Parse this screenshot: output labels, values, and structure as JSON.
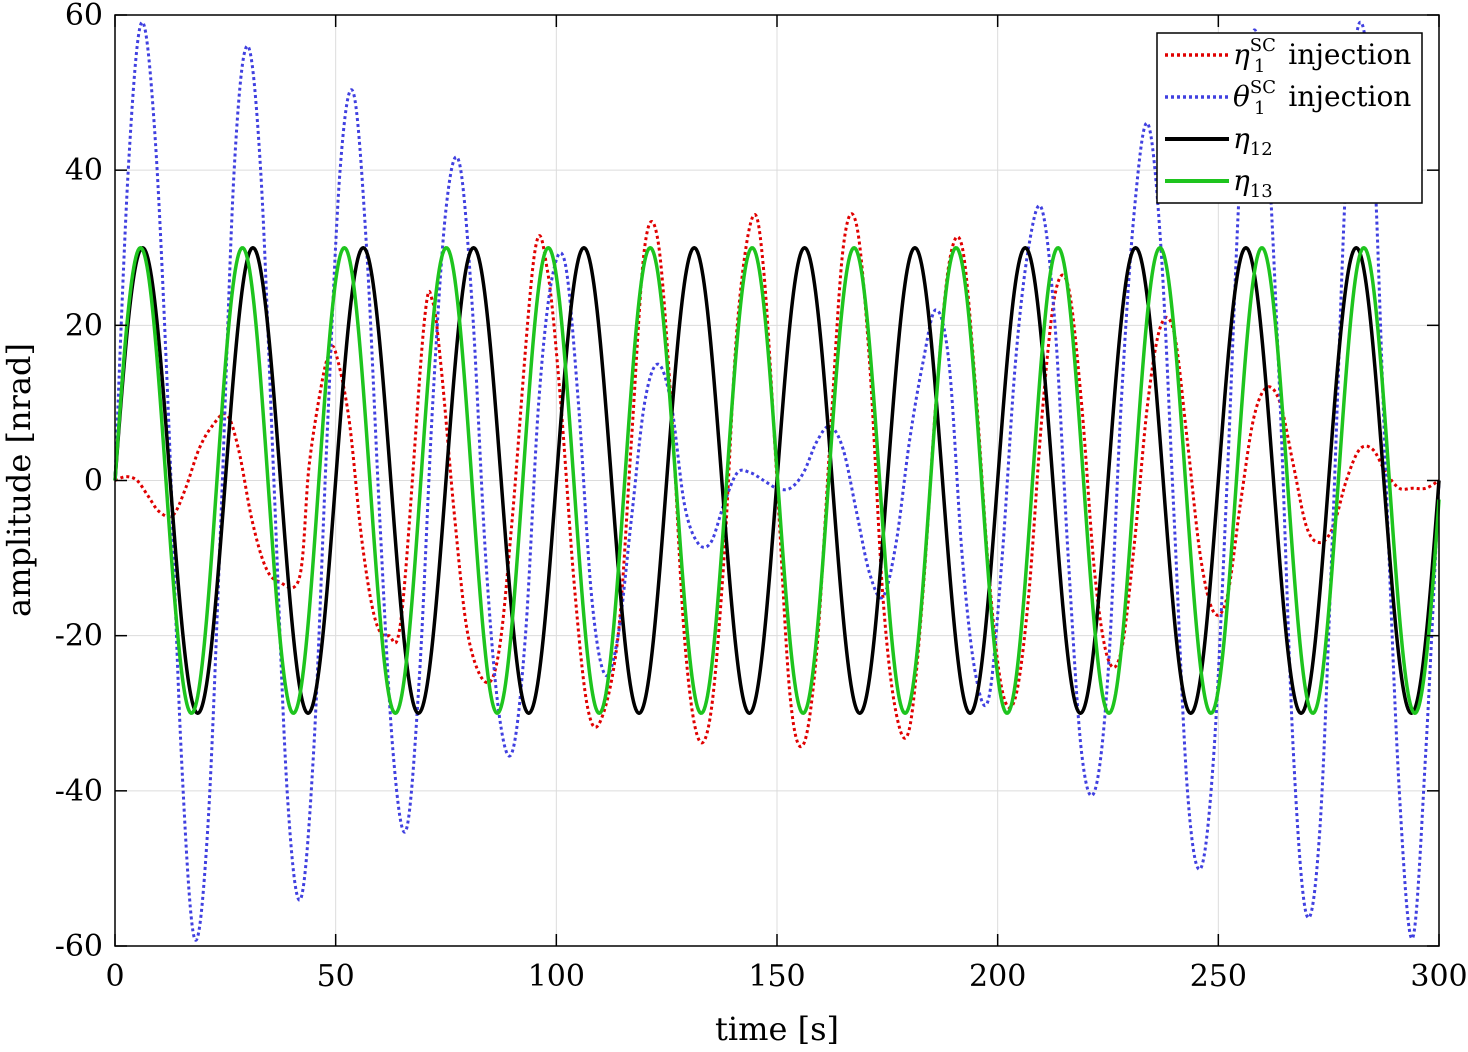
{
  "chart_data": {
    "type": "line",
    "xlabel": "time [s]",
    "ylabel": "amplitude [nrad]",
    "xlim": [
      0,
      300
    ],
    "ylim": [
      -60,
      60
    ],
    "xticks": [
      0,
      50,
      100,
      150,
      200,
      250,
      300
    ],
    "yticks": [
      -60,
      -40,
      -20,
      0,
      20,
      40,
      60
    ],
    "grid": true,
    "legend_position": "top-right",
    "series": [
      {
        "name": "η1SC injection",
        "symbol": "η",
        "subscript": "1",
        "superscript": "SC",
        "suffix": " injection",
        "color": "#e00000",
        "style": "dotted",
        "x": [
          0,
          2.5,
          5,
          7.5,
          10,
          13.1,
          16,
          19,
          22,
          25.3,
          28,
          31,
          34,
          37,
          41.8,
          44,
          47,
          50,
          48.7,
          53,
          56,
          59,
          62,
          65,
          70,
          72,
          74,
          77,
          80,
          84,
          87,
          90,
          95,
          98,
          101,
          104,
          107,
          110,
          114,
          117,
          120,
          123,
          126,
          129,
          132,
          135,
          138,
          141,
          144.5,
          147,
          150,
          153,
          156,
          159,
          162,
          165,
          168,
          171,
          174,
          177,
          180,
          183,
          186,
          189,
          192,
          195,
          198,
          201,
          204,
          207,
          210,
          213,
          216,
          219,
          222,
          225,
          228,
          231,
          234,
          237,
          240,
          243,
          246,
          249,
          252,
          255,
          258,
          261,
          264,
          267,
          270,
          273,
          276,
          279,
          282,
          285,
          288,
          291,
          294,
          297,
          300
        ],
        "y": [
          0,
          0.5,
          0,
          -2,
          -4,
          -4.5,
          -1,
          4,
          7,
          8.5,
          4,
          -5,
          -11,
          -13,
          -12.5,
          2,
          13,
          16.5,
          16.5,
          8,
          -8,
          -18,
          -20,
          -17,
          20,
          23,
          14,
          -5,
          -20,
          -26,
          -22,
          -5,
          29,
          27,
          10,
          -13,
          -29,
          -31,
          -20,
          5,
          30,
          31,
          10,
          -20,
          -33,
          -30,
          -10,
          20,
          34,
          27,
          0,
          -28,
          -34,
          -22,
          5,
          30,
          33,
          15,
          -15,
          -30,
          -32,
          -15,
          10,
          28,
          30,
          12,
          -12,
          -27,
          -28,
          -15,
          8,
          24,
          25,
          10,
          -12,
          -23,
          -22,
          -8,
          10,
          20,
          19,
          5,
          -10,
          -17,
          -15,
          -3,
          8,
          12,
          10,
          2,
          -6,
          -8,
          -6,
          0,
          4,
          4,
          1,
          -1,
          -1,
          -1,
          0
        ]
      },
      {
        "name": "θ1SC injection",
        "symbol": "θ",
        "subscript": "1",
        "superscript": "SC",
        "suffix": " injection",
        "color": "#4040e0",
        "style": "dotted",
        "x": [
          0,
          3,
          6,
          9,
          12,
          15,
          18,
          21,
          24,
          27,
          30,
          33,
          36,
          39,
          42,
          45,
          48,
          51,
          54,
          57,
          60,
          63,
          66,
          69,
          72,
          75,
          78,
          81,
          84,
          87,
          90,
          93,
          96,
          99,
          102,
          105,
          108,
          111,
          114,
          117,
          120,
          123,
          126,
          129,
          132,
          135,
          138,
          141,
          144,
          147,
          150,
          153,
          156,
          159,
          162,
          165,
          168,
          171,
          174,
          177,
          180,
          183,
          186,
          189,
          192,
          195,
          198,
          201,
          204,
          207,
          210,
          213,
          216,
          219,
          222,
          225,
          228,
          231,
          234,
          237,
          240,
          243,
          246,
          249,
          252,
          255,
          258,
          261,
          264,
          267,
          270,
          273,
          276,
          279,
          282,
          285,
          288,
          291,
          294,
          297,
          300
        ],
        "y": [
          0,
          40,
          59,
          45,
          10,
          -35,
          -59,
          -45,
          -5,
          40,
          56,
          40,
          0,
          -40,
          -54,
          -35,
          5,
          40,
          50,
          30,
          -5,
          -35,
          -45,
          -25,
          10,
          35,
          41,
          22,
          -10,
          -30,
          -35,
          -20,
          10,
          26,
          28,
          10,
          -15,
          -25,
          -20,
          -5,
          10,
          15,
          10,
          -3,
          -8,
          -8,
          -3,
          1,
          1,
          0,
          -1,
          -1,
          1,
          5,
          7,
          4,
          -4,
          -12,
          -15,
          -8,
          5,
          15,
          22,
          15,
          -10,
          -25,
          -28,
          -10,
          15,
          30,
          35,
          20,
          -10,
          -35,
          -40,
          -25,
          10,
          35,
          46,
          30,
          -5,
          -40,
          -50,
          -35,
          0,
          40,
          58,
          45,
          10,
          -35,
          -56,
          -45,
          -5,
          40,
          59,
          45,
          0,
          -40,
          -59,
          -35,
          0
        ]
      },
      {
        "name": "η12",
        "symbol": "η",
        "subscript": "12",
        "superscript": "",
        "suffix": "",
        "color": "#000000",
        "style": "solid",
        "amplitude": 30,
        "period_s": 25
      },
      {
        "name": "η13",
        "symbol": "η",
        "subscript": "13",
        "superscript": "",
        "suffix": "",
        "color": "#1ec41e",
        "style": "solid",
        "amplitude": 30,
        "period_s": 23.1
      }
    ]
  }
}
